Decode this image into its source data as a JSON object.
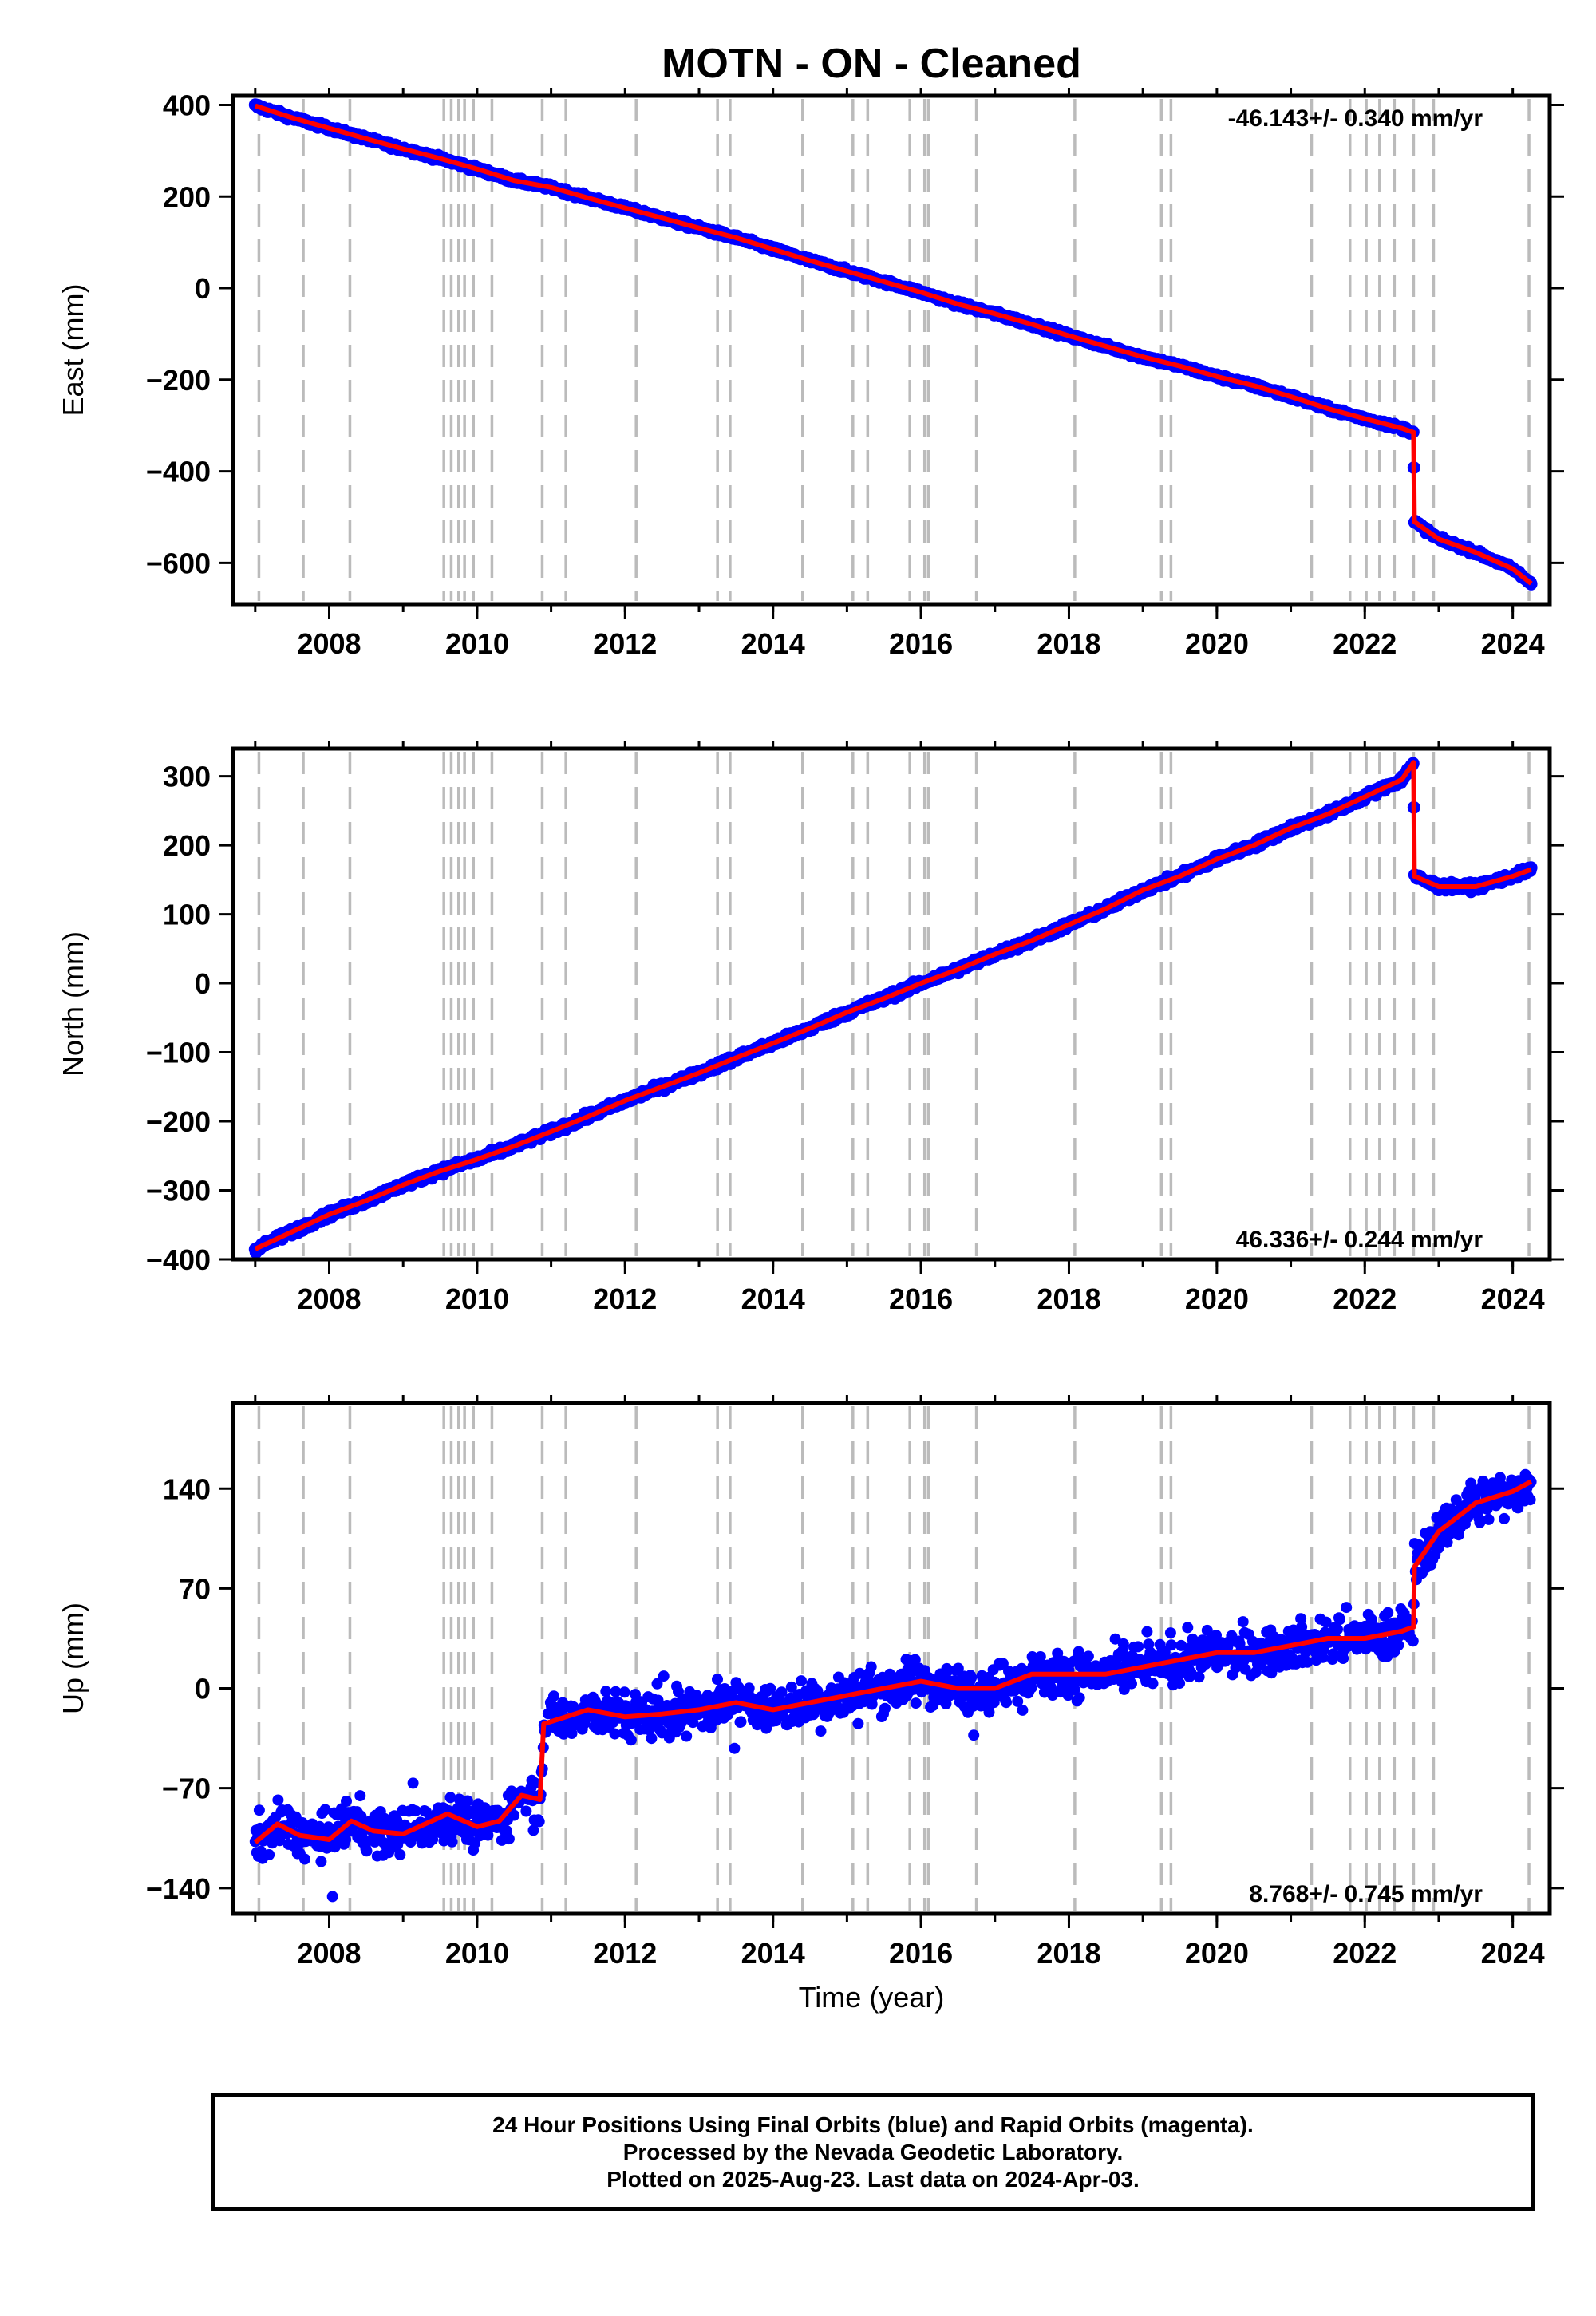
{
  "title": "MOTN  - ON - Cleaned",
  "x_axis_label": "Time (year)",
  "footer": {
    "line1": "24 Hour Positions Using Final Orbits (blue) and Rapid Orbits (magenta).",
    "line2": "Processed by the Nevada Geodetic Laboratory.",
    "line3": "Plotted on 2025-Aug-23. Last data on 2024-Apr-03."
  },
  "colors": {
    "final_orbits_points": "#0000ff",
    "model_line": "#ff0000",
    "event_lines": "#bbbbbb",
    "frame": "#000000"
  },
  "chart_data": [
    {
      "type": "scatter",
      "panel": "east",
      "ylabel": "East (mm)",
      "rate_label": "-46.143+/- 0.340 mm/yr",
      "xlim": [
        2006.7,
        2024.5
      ],
      "ylim": [
        -690,
        420
      ],
      "xticks": [
        "2008",
        "2010",
        "2012",
        "2014",
        "2016",
        "2018",
        "2020",
        "2022",
        "2024"
      ],
      "yticks": [
        "400",
        "200",
        "0",
        "−200",
        "−400",
        "−600"
      ],
      "event_years": [
        2007.05,
        2007.65,
        2008.28,
        2009.55,
        2009.65,
        2009.75,
        2009.83,
        2009.95,
        2010.2,
        2010.88,
        2011.2,
        2012.15,
        2013.25,
        2013.42,
        2014.4,
        2015.08,
        2015.28,
        2015.85,
        2016.05,
        2016.1,
        2016.75,
        2018.08,
        2019.25,
        2019.38,
        2021.28,
        2021.8,
        2022.02,
        2022.2,
        2022.4,
        2022.66,
        2022.93,
        2024.22
      ],
      "series": [
        {
          "x": [
            2007.0,
            2007.5,
            2008.0,
            2008.5,
            2009.0,
            2009.5,
            2010.0,
            2010.5,
            2011.0,
            2011.5,
            2012.0,
            2012.5,
            2013.0,
            2013.5,
            2014.0,
            2014.5,
            2015.0,
            2015.5,
            2016.0,
            2016.5,
            2017.0,
            2017.5,
            2018.0,
            2018.5,
            2019.0,
            2019.5,
            2020.0,
            2020.5,
            2021.0,
            2021.5,
            2022.0,
            2022.5,
            2022.66,
            2022.67,
            2023.0,
            2023.5,
            2024.0,
            2024.25
          ],
          "y": [
            398,
            372,
            349,
            326,
            304,
            283,
            260,
            235,
            220,
            197,
            175,
            153,
            131,
            110,
            85,
            60,
            37,
            14,
            -9,
            -35,
            -56,
            -79,
            -104,
            -127,
            -150,
            -170,
            -193,
            -213,
            -237,
            -263,
            -285,
            -306,
            -315,
            -510,
            -548,
            -577,
            -613,
            -645
          ]
        }
      ]
    },
    {
      "type": "scatter",
      "panel": "north",
      "ylabel": "North (mm)",
      "rate_label": "46.336+/- 0.244 mm/yr",
      "xlim": [
        2006.7,
        2024.5
      ],
      "ylim": [
        -400,
        340
      ],
      "xticks": [
        "2008",
        "2010",
        "2012",
        "2014",
        "2016",
        "2018",
        "2020",
        "2022",
        "2024"
      ],
      "yticks": [
        "300",
        "200",
        "100",
        "0",
        "−100",
        "−200",
        "−300",
        "−400"
      ],
      "event_years": [
        2007.05,
        2007.65,
        2008.28,
        2009.55,
        2009.65,
        2009.75,
        2009.83,
        2009.95,
        2010.2,
        2010.88,
        2011.2,
        2012.15,
        2013.25,
        2013.42,
        2014.4,
        2015.08,
        2015.28,
        2015.85,
        2016.05,
        2016.1,
        2016.75,
        2018.08,
        2019.25,
        2019.38,
        2021.28,
        2021.8,
        2022.02,
        2022.2,
        2022.4,
        2022.66,
        2022.93,
        2024.22
      ],
      "series": [
        {
          "x": [
            2007.0,
            2007.5,
            2008.0,
            2008.5,
            2009.0,
            2009.5,
            2010.0,
            2010.5,
            2011.0,
            2011.5,
            2012.0,
            2012.5,
            2013.0,
            2013.5,
            2014.0,
            2014.5,
            2015.0,
            2015.5,
            2016.0,
            2016.5,
            2017.0,
            2017.5,
            2018.0,
            2018.5,
            2019.0,
            2019.5,
            2020.0,
            2020.5,
            2021.0,
            2021.5,
            2022.0,
            2022.5,
            2022.66,
            2022.67,
            2023.0,
            2023.5,
            2024.0,
            2024.25
          ],
          "y": [
            -385,
            -360,
            -335,
            -315,
            -292,
            -272,
            -255,
            -236,
            -215,
            -193,
            -170,
            -150,
            -130,
            -108,
            -87,
            -65,
            -42,
            -22,
            0,
            20,
            42,
            62,
            85,
            108,
            135,
            155,
            180,
            200,
            225,
            245,
            270,
            295,
            320,
            155,
            140,
            140,
            155,
            165
          ]
        }
      ]
    },
    {
      "type": "scatter",
      "panel": "up",
      "ylabel": "Up (mm)",
      "rate_label": "8.768+/- 0.745 mm/yr",
      "xlim": [
        2006.7,
        2024.5
      ],
      "ylim": [
        -158,
        200
      ],
      "xticks": [
        "2008",
        "2010",
        "2012",
        "2014",
        "2016",
        "2018",
        "2020",
        "2022",
        "2024"
      ],
      "yticks": [
        "140",
        "70",
        "0",
        "−70",
        "−140"
      ],
      "event_years": [
        2007.05,
        2007.65,
        2008.28,
        2009.55,
        2009.65,
        2009.75,
        2009.83,
        2009.95,
        2010.2,
        2010.88,
        2011.2,
        2012.15,
        2013.25,
        2013.42,
        2014.4,
        2015.08,
        2015.28,
        2015.85,
        2016.05,
        2016.1,
        2016.75,
        2018.08,
        2019.25,
        2019.38,
        2021.28,
        2021.8,
        2022.02,
        2022.2,
        2022.4,
        2022.66,
        2022.93,
        2024.22
      ],
      "series": [
        {
          "x": [
            2007.0,
            2007.3,
            2007.6,
            2008.0,
            2008.3,
            2008.6,
            2009.0,
            2009.3,
            2009.6,
            2010.0,
            2010.3,
            2010.6,
            2010.85,
            2010.9,
            2011.5,
            2012.0,
            2012.5,
            2013.0,
            2013.5,
            2014.0,
            2014.5,
            2015.0,
            2015.5,
            2016.0,
            2016.5,
            2017.0,
            2017.5,
            2018.0,
            2018.5,
            2019.0,
            2019.5,
            2020.0,
            2020.5,
            2021.0,
            2021.5,
            2022.0,
            2022.5,
            2022.66,
            2022.67,
            2023.0,
            2023.5,
            2024.0,
            2024.25
          ],
          "y": [
            -108,
            -95,
            -103,
            -106,
            -93,
            -100,
            -102,
            -95,
            -88,
            -97,
            -93,
            -75,
            -78,
            -25,
            -15,
            -20,
            -18,
            -15,
            -10,
            -15,
            -10,
            -5,
            0,
            5,
            0,
            0,
            10,
            10,
            10,
            15,
            20,
            25,
            25,
            30,
            35,
            35,
            40,
            43,
            85,
            110,
            130,
            138,
            145
          ]
        }
      ]
    }
  ]
}
